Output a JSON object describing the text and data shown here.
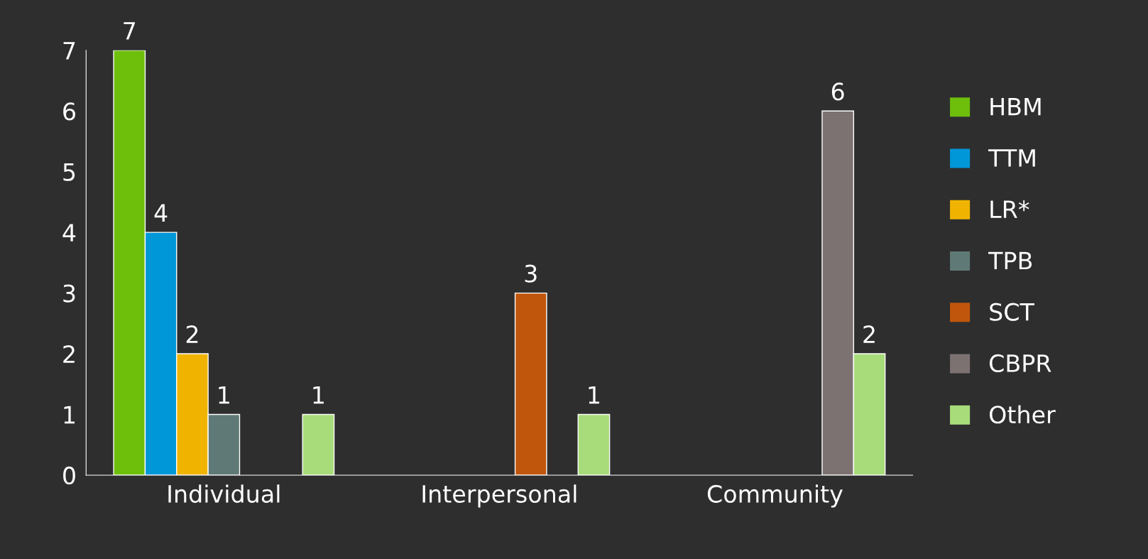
{
  "chart_data": {
    "type": "bar",
    "categories": [
      "Individual",
      "Interpersonal",
      "Community"
    ],
    "series": [
      {
        "name": "HBM",
        "color": "#6dbf0c",
        "values": [
          7,
          null,
          null
        ]
      },
      {
        "name": "TTM",
        "color": "#0097d8",
        "values": [
          4,
          null,
          null
        ]
      },
      {
        "name": "LR*",
        "color": "#f0b400",
        "values": [
          2,
          null,
          null
        ]
      },
      {
        "name": "TPB",
        "color": "#5f7a76",
        "values": [
          1,
          null,
          null
        ]
      },
      {
        "name": "SCT",
        "color": "#c0560c",
        "values": [
          null,
          3,
          null
        ]
      },
      {
        "name": "CBPR",
        "color": "#7d7272",
        "values": [
          null,
          null,
          6
        ]
      },
      {
        "name": "Other",
        "color": "#a8dc7a",
        "values": [
          1,
          1,
          2
        ]
      }
    ],
    "ylim": [
      0,
      7
    ],
    "yticks": [
      0,
      1,
      2,
      3,
      4,
      5,
      6,
      7
    ],
    "grid": false,
    "legend": "right",
    "data_labels": true
  }
}
